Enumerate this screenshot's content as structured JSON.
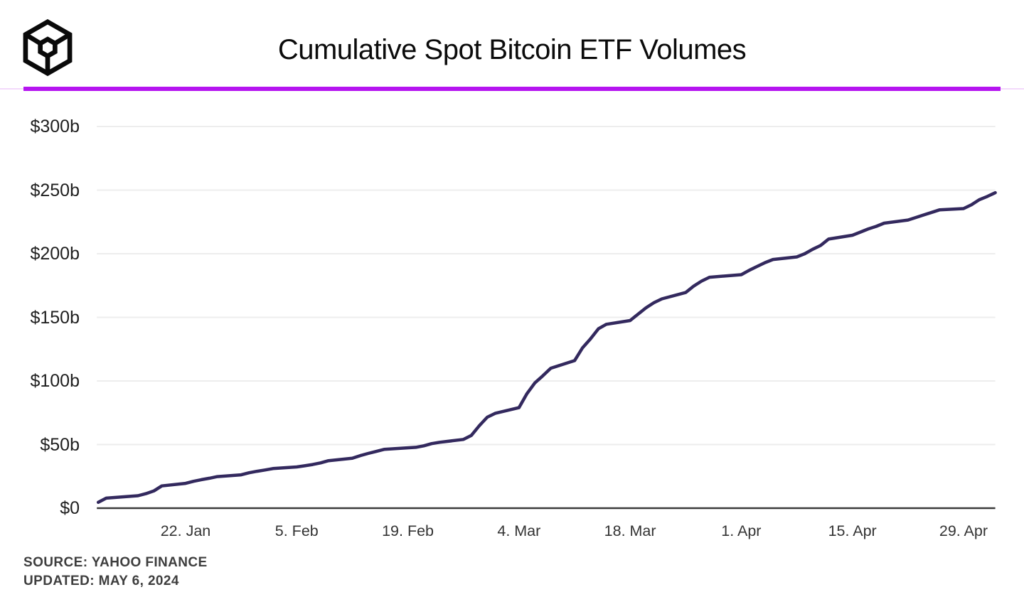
{
  "header": {
    "logo_name": "block-cube-logo",
    "title": "Cumulative Spot Bitcoin ETF Volumes",
    "accent_color": "#b515f0",
    "accent_light_color": "#f3d9fb"
  },
  "footer": {
    "source_line": "SOURCE: YAHOO FINANCE",
    "updated_line": "UPDATED: MAY 6, 2024"
  },
  "chart_data": {
    "type": "line",
    "title": "Cumulative Spot Bitcoin ETF Volumes",
    "series_name": "Cumulative spot Bitcoin ETF volume",
    "unit": "billions USD",
    "line_color": "#33295e",
    "grid_color": "#ededed",
    "axis_color": "#3a3a3a",
    "grid": "horizontal-only",
    "legend": "none",
    "ylim": [
      0,
      300
    ],
    "xlim": [
      "2024-01-11",
      "2024-05-03"
    ],
    "y_ticks": [
      {
        "v": 0,
        "label": "$0"
      },
      {
        "v": 50,
        "label": "$50b"
      },
      {
        "v": 100,
        "label": "$100b"
      },
      {
        "v": 150,
        "label": "$150b"
      },
      {
        "v": 200,
        "label": "$200b"
      },
      {
        "v": 250,
        "label": "$250b"
      },
      {
        "v": 300,
        "label": "$300b"
      }
    ],
    "x_ticks": [
      {
        "date": "2024-01-22",
        "label": "22. Jan"
      },
      {
        "date": "2024-02-05",
        "label": "5. Feb"
      },
      {
        "date": "2024-02-19",
        "label": "19. Feb"
      },
      {
        "date": "2024-03-04",
        "label": "4. Mar"
      },
      {
        "date": "2024-03-18",
        "label": "18. Mar"
      },
      {
        "date": "2024-04-01",
        "label": "1. Apr"
      },
      {
        "date": "2024-04-15",
        "label": "15. Apr"
      },
      {
        "date": "2024-04-29",
        "label": "29. Apr"
      }
    ],
    "points": [
      {
        "d": "2024-01-11",
        "v": 4.6
      },
      {
        "d": "2024-01-12",
        "v": 7.9
      },
      {
        "d": "2024-01-16",
        "v": 9.8
      },
      {
        "d": "2024-01-17",
        "v": 11.4
      },
      {
        "d": "2024-01-18",
        "v": 13.5
      },
      {
        "d": "2024-01-19",
        "v": 17.5
      },
      {
        "d": "2024-01-22",
        "v": 19.5
      },
      {
        "d": "2024-01-23",
        "v": 21.1
      },
      {
        "d": "2024-01-24",
        "v": 22.4
      },
      {
        "d": "2024-01-25",
        "v": 23.5
      },
      {
        "d": "2024-01-26",
        "v": 24.8
      },
      {
        "d": "2024-01-29",
        "v": 26.2
      },
      {
        "d": "2024-01-30",
        "v": 27.8
      },
      {
        "d": "2024-01-31",
        "v": 29.0
      },
      {
        "d": "2024-02-01",
        "v": 30.0
      },
      {
        "d": "2024-02-02",
        "v": 31.1
      },
      {
        "d": "2024-02-05",
        "v": 32.4
      },
      {
        "d": "2024-02-06",
        "v": 33.3
      },
      {
        "d": "2024-02-07",
        "v": 34.3
      },
      {
        "d": "2024-02-08",
        "v": 35.6
      },
      {
        "d": "2024-02-09",
        "v": 37.3
      },
      {
        "d": "2024-02-12",
        "v": 39.2
      },
      {
        "d": "2024-02-13",
        "v": 41.3
      },
      {
        "d": "2024-02-14",
        "v": 43.0
      },
      {
        "d": "2024-02-15",
        "v": 44.6
      },
      {
        "d": "2024-02-16",
        "v": 46.2
      },
      {
        "d": "2024-02-20",
        "v": 47.8
      },
      {
        "d": "2024-02-21",
        "v": 49.0
      },
      {
        "d": "2024-02-22",
        "v": 50.7
      },
      {
        "d": "2024-02-23",
        "v": 51.8
      },
      {
        "d": "2024-02-26",
        "v": 54.0
      },
      {
        "d": "2024-02-27",
        "v": 57.2
      },
      {
        "d": "2024-02-28",
        "v": 64.8
      },
      {
        "d": "2024-02-29",
        "v": 71.5
      },
      {
        "d": "2024-03-01",
        "v": 74.5
      },
      {
        "d": "2024-03-04",
        "v": 79.0
      },
      {
        "d": "2024-03-05",
        "v": 90.0
      },
      {
        "d": "2024-03-06",
        "v": 98.5
      },
      {
        "d": "2024-03-07",
        "v": 104.0
      },
      {
        "d": "2024-03-08",
        "v": 110.0
      },
      {
        "d": "2024-03-11",
        "v": 116.0
      },
      {
        "d": "2024-03-12",
        "v": 126.0
      },
      {
        "d": "2024-03-13",
        "v": 133.0
      },
      {
        "d": "2024-03-14",
        "v": 141.0
      },
      {
        "d": "2024-03-15",
        "v": 144.5
      },
      {
        "d": "2024-03-18",
        "v": 147.5
      },
      {
        "d": "2024-03-19",
        "v": 152.5
      },
      {
        "d": "2024-03-20",
        "v": 157.5
      },
      {
        "d": "2024-03-21",
        "v": 161.5
      },
      {
        "d": "2024-03-22",
        "v": 164.5
      },
      {
        "d": "2024-03-25",
        "v": 169.5
      },
      {
        "d": "2024-03-26",
        "v": 174.5
      },
      {
        "d": "2024-03-27",
        "v": 178.5
      },
      {
        "d": "2024-03-28",
        "v": 181.5
      },
      {
        "d": "2024-04-01",
        "v": 183.5
      },
      {
        "d": "2024-04-02",
        "v": 187.0
      },
      {
        "d": "2024-04-03",
        "v": 190.0
      },
      {
        "d": "2024-04-04",
        "v": 193.0
      },
      {
        "d": "2024-04-05",
        "v": 195.5
      },
      {
        "d": "2024-04-08",
        "v": 197.5
      },
      {
        "d": "2024-04-09",
        "v": 200.0
      },
      {
        "d": "2024-04-10",
        "v": 203.5
      },
      {
        "d": "2024-04-11",
        "v": 206.5
      },
      {
        "d": "2024-04-12",
        "v": 211.5
      },
      {
        "d": "2024-04-15",
        "v": 214.5
      },
      {
        "d": "2024-04-16",
        "v": 217.0
      },
      {
        "d": "2024-04-17",
        "v": 219.5
      },
      {
        "d": "2024-04-18",
        "v": 221.5
      },
      {
        "d": "2024-04-19",
        "v": 224.0
      },
      {
        "d": "2024-04-22",
        "v": 226.5
      },
      {
        "d": "2024-04-23",
        "v": 228.5
      },
      {
        "d": "2024-04-24",
        "v": 230.5
      },
      {
        "d": "2024-04-25",
        "v": 232.5
      },
      {
        "d": "2024-04-26",
        "v": 234.5
      },
      {
        "d": "2024-04-29",
        "v": 235.5
      },
      {
        "d": "2024-04-30",
        "v": 238.5
      },
      {
        "d": "2024-05-01",
        "v": 242.5
      },
      {
        "d": "2024-05-02",
        "v": 245.0
      },
      {
        "d": "2024-05-03",
        "v": 248.0
      }
    ]
  }
}
